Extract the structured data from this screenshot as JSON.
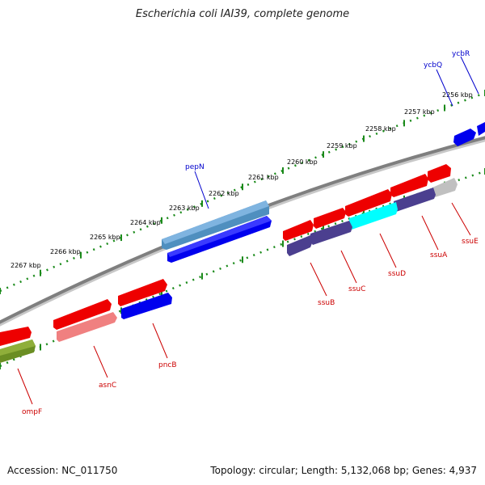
{
  "title": "Escherichia coli IAI39, complete genome",
  "footer": {
    "accession": "Accession: NC_011750",
    "stats": "Topology: circular; Length: 5,132,068 bp; Genes: 4,937"
  },
  "ticks": [
    "2256 kbp",
    "2257 kbp",
    "2258 kbp",
    "2259 kbp",
    "2260 kbp",
    "2261 kbp",
    "2262 kbp",
    "2263 kbp",
    "2264 kbp",
    "2265 kbp",
    "2266 kbp",
    "2267 kbp"
  ],
  "genes_top": [
    "ycbR",
    "ycbQ",
    "pepN"
  ],
  "genes_bottom": [
    "ssuE",
    "ssuA",
    "ssuD",
    "ssuC",
    "ssuB",
    "pncB",
    "asnC",
    "ompF"
  ],
  "colors": {
    "backbone": "#808080",
    "forward_gene": "#0000ee",
    "reverse_gene": "#ee0000",
    "top_label": "#0000cc",
    "bottom_label": "#cc0000",
    "tick": "#1a8a1a"
  }
}
